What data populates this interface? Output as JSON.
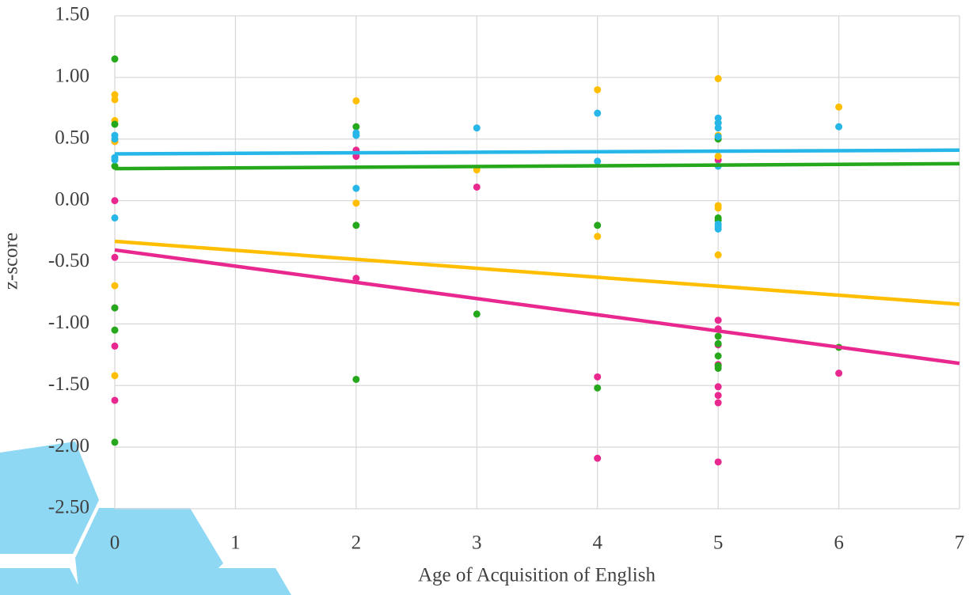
{
  "chart_data": {
    "type": "scatter",
    "x_label": "Age of Acquisition of English",
    "y_label": "z-score",
    "xlim": [
      0,
      7
    ],
    "xticks": [
      0,
      1,
      2,
      3,
      4,
      5,
      6,
      7
    ],
    "ylim": [
      -2.5,
      1.5
    ],
    "yticks": [
      {
        "value": -2.5,
        "label": "-2.50"
      },
      {
        "value": -2,
        "label": "-2.00"
      },
      {
        "value": -1.5,
        "label": "-1.50"
      },
      {
        "value": -1,
        "label": "-1.00"
      },
      {
        "value": -0.5,
        "label": "-0.50"
      },
      {
        "value": 0,
        "label": "0.00"
      },
      {
        "value": 0.5,
        "label": "0.50"
      },
      {
        "value": 1,
        "label": "1.00"
      },
      {
        "value": 1.5,
        "label": "1.50"
      }
    ],
    "grid": true,
    "series": [
      {
        "color": "#e8288f",
        "x": [
          0,
          0,
          0,
          0,
          0,
          0,
          2,
          2,
          2,
          3,
          4,
          4,
          5,
          5,
          5,
          5,
          5,
          5,
          5,
          5,
          5,
          6
        ],
        "values": [
          0.48,
          0.0,
          -0.46,
          -0.87,
          -1.18,
          -1.62,
          0.41,
          0.36,
          -0.63,
          0.11,
          -1.43,
          -2.09,
          0.33,
          -0.97,
          -1.04,
          -1.17,
          -1.33,
          -1.51,
          -1.58,
          -1.64,
          -2.12,
          -1.4
        ],
        "trendline": [
          -0.4,
          -1.32
        ]
      },
      {
        "color": "#ffbf00",
        "x": [
          0,
          0,
          0,
          0,
          0,
          0,
          0,
          2,
          2,
          3,
          4,
          4,
          5,
          5,
          5,
          5,
          5,
          5,
          5,
          6
        ],
        "values": [
          0.86,
          0.82,
          0.65,
          0.5,
          0.48,
          -0.69,
          -1.42,
          0.81,
          -0.02,
          0.25,
          0.9,
          -0.29,
          0.99,
          0.53,
          0.51,
          0.36,
          -0.04,
          -0.06,
          -0.44,
          0.76
        ],
        "trendline": [
          -0.33,
          -0.84
        ]
      },
      {
        "color": "#25a81b",
        "x": [
          0,
          0,
          0,
          0,
          0,
          0,
          2,
          2,
          2,
          3,
          4,
          4,
          5,
          5,
          5,
          5,
          5,
          5,
          5,
          5,
          5,
          6
        ],
        "values": [
          1.15,
          0.62,
          0.28,
          -0.87,
          -1.05,
          -1.96,
          0.6,
          -0.2,
          -1.45,
          -0.92,
          -0.2,
          -1.52,
          0.63,
          0.5,
          -0.14,
          -0.16,
          -1.1,
          -1.16,
          -1.26,
          -1.34,
          -1.36,
          -1.19
        ],
        "trendline": [
          0.26,
          0.3
        ]
      },
      {
        "color": "#27b6e8",
        "x": [
          0,
          0,
          0,
          0,
          0,
          2,
          2,
          2,
          3,
          4,
          4,
          5,
          5,
          5,
          5,
          5,
          5,
          5,
          5,
          6
        ],
        "values": [
          0.53,
          0.5,
          0.35,
          0.33,
          -0.14,
          0.55,
          0.53,
          0.1,
          0.59,
          0.71,
          0.32,
          0.67,
          0.63,
          0.59,
          0.52,
          0.28,
          -0.19,
          -0.21,
          -0.23,
          0.6
        ],
        "trendline": [
          0.38,
          0.41
        ]
      }
    ]
  }
}
